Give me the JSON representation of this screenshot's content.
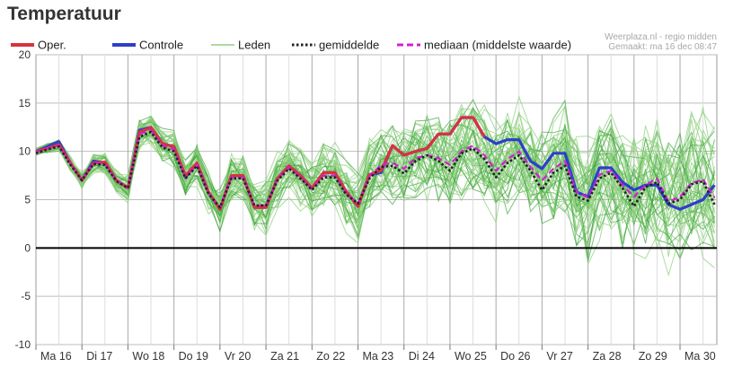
{
  "title": "Temperatuur",
  "source_line1": "Weerplaza.nl - regio midden",
  "source_line2": "Gemaakt: ma 16 dec 08:47",
  "colors": {
    "oper": "#d63340",
    "controle": "#2f3fc9",
    "leden": "#8fd07f",
    "leden_dark": "#3fa63a",
    "gemiddelde": "#222222",
    "mediaan": "#d41fd6",
    "grid": "#bdbdbd",
    "zero_line": "#000000"
  },
  "chart_data": {
    "type": "line",
    "title": "Temperatuur",
    "xlabel": "",
    "ylabel": "",
    "ylim": [
      -10,
      20
    ],
    "yticks": [
      -10,
      -5,
      0,
      5,
      10,
      15,
      20
    ],
    "x_day_labels": [
      "Ma 16",
      "Di 17",
      "Wo 18",
      "Do 19",
      "Vr 20",
      "Za 21",
      "Zo 22",
      "Ma 23",
      "Di 24",
      "Wo 25",
      "Do 26",
      "Vr 27",
      "Za 28",
      "Zo 29",
      "Ma 30"
    ],
    "x_step": "6 uur",
    "grid": true,
    "legend_placement": "top",
    "legend": [
      "Oper.",
      "Controle",
      "Leden",
      "gemiddelde",
      "mediaan (middelste waarde)"
    ],
    "series": [
      {
        "name": "Oper.",
        "values": [
          10,
          10.3,
          10.7,
          8.8,
          7,
          8.8,
          8.9,
          7,
          6.2,
          12,
          12.5,
          10.8,
          10.5,
          7.5,
          8.8,
          5.8,
          4,
          7.5,
          7.5,
          4.2,
          4.2,
          7.2,
          8.5,
          7.5,
          6.2,
          7.8,
          7.8,
          5.8,
          4.3,
          7.6,
          8,
          10.6,
          9.6,
          10,
          10.3,
          11.8,
          11.8,
          13.5,
          13.5,
          11.5
        ]
      },
      {
        "name": "Controle",
        "values": [
          10,
          10.5,
          11,
          8.8,
          7,
          9,
          8.8,
          7,
          6.2,
          12.2,
          12.5,
          10.8,
          10.5,
          7.3,
          8.8,
          5.8,
          4,
          7.5,
          7.5,
          4.2,
          4.2,
          7.2,
          8.5,
          7.5,
          6.2,
          7.8,
          7.8,
          5.8,
          4.3,
          7.6,
          7.8,
          10.6,
          9.6,
          10,
          10.3,
          11.8,
          11.8,
          13.5,
          13.5,
          11.5,
          10.8,
          11.2,
          11.2,
          9,
          8.2,
          9.8,
          9.8,
          5.8,
          5.3,
          8.3,
          8.3,
          6.8,
          6,
          6.5,
          6.5,
          4.5,
          4,
          4.5,
          5,
          6.5
        ]
      },
      {
        "name": "gemiddelde",
        "values": [
          9.8,
          10.2,
          10.5,
          8.6,
          7,
          8.7,
          8.6,
          6.9,
          6.2,
          11.5,
          12,
          10.4,
          10,
          7.2,
          8.5,
          5.6,
          4.2,
          7.2,
          7.2,
          4.4,
          4.4,
          7,
          8.2,
          7.2,
          6,
          7.3,
          7.3,
          5.5,
          4.6,
          7.2,
          8.4,
          8.5,
          7.7,
          9,
          9.6,
          9,
          8,
          9.8,
          10.3,
          9.2,
          7.3,
          8.8,
          9.6,
          8,
          6,
          7.8,
          8.5,
          5.3,
          4.9,
          7.2,
          7.8,
          6.2,
          4.3,
          6.3,
          6.8,
          4.6,
          5,
          6.6,
          6.9,
          4.5
        ]
      },
      {
        "name": "mediaan (middelste waarde)",
        "values": [
          9.9,
          10.3,
          10.6,
          8.7,
          7,
          8.8,
          8.7,
          7,
          6.2,
          11.8,
          12.2,
          10.6,
          10.2,
          7.3,
          8.6,
          5.7,
          4.2,
          7.3,
          7.3,
          4.4,
          4.4,
          7.1,
          8.3,
          7.3,
          6.1,
          7.5,
          7.5,
          5.6,
          4.6,
          7.4,
          8.6,
          8.8,
          8.2,
          9.3,
          9.6,
          9.3,
          8.6,
          10,
          10.6,
          9.6,
          8,
          9.2,
          10,
          8.4,
          7,
          8.2,
          9,
          5.8,
          5.2,
          7.6,
          8,
          6.5,
          5.3,
          6.5,
          7.2,
          4.8,
          5.3,
          6.7,
          7.1,
          5.2
        ]
      }
    ]
  }
}
